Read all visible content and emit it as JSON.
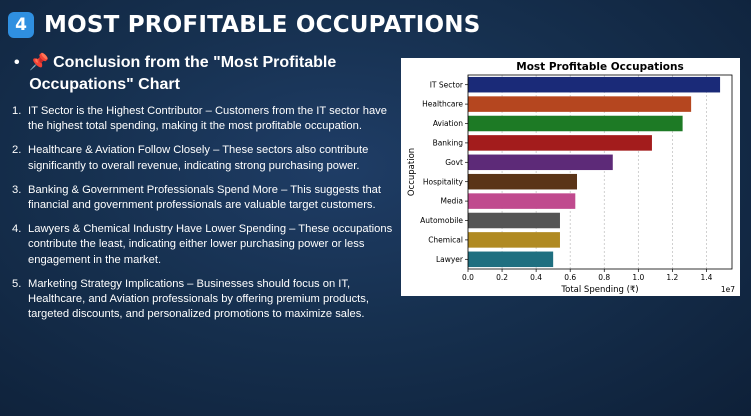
{
  "slide": {
    "badge": "4",
    "title": "MOST PROFITABLE OCCUPATIONS",
    "subheading_bullet": "•",
    "pin_icon": "📌",
    "subheading": "Conclusion from the \"Most Profitable Occupations\" Chart"
  },
  "points": [
    {
      "num": "1.",
      "text": "IT Sector is the Highest Contributor – Customers from the IT sector have the highest total spending, making it the most profitable occupation."
    },
    {
      "num": "2.",
      "text": "Healthcare & Aviation Follow Closely – These sectors also contribute significantly to overall revenue, indicating strong purchasing power."
    },
    {
      "num": "3.",
      "text": "Banking & Government Professionals Spend More – This suggests that financial and government professionals are valuable target customers."
    },
    {
      "num": "4.",
      "text": "Lawyers & Chemical Industry Have Lower Spending – These occupations contribute the least, indicating either lower purchasing power or less engagement in the market."
    },
    {
      "num": "5.",
      "text": "Marketing Strategy Implications – Businesses should focus on IT, Healthcare, and Aviation professionals by offering premium products, targeted discounts, and personalized promotions to maximize sales."
    }
  ],
  "chart_data": {
    "type": "bar",
    "orientation": "horizontal",
    "title": "Most Profitable Occupations",
    "xlabel": "Total Spending (₹)",
    "ylabel": "Occupation",
    "x_multiplier_label": "1e7",
    "xlim": [
      0,
      1.55
    ],
    "xticks": [
      "0.0",
      "0.2",
      "0.4",
      "0.6",
      "0.8",
      "1.0",
      "1.2",
      "1.4"
    ],
    "grid": "x dashed",
    "categories": [
      "IT Sector",
      "Healthcare",
      "Aviation",
      "Banking",
      "Govt",
      "Hospitality",
      "Media",
      "Automobile",
      "Chemical",
      "Lawyer"
    ],
    "values": [
      1.48,
      1.31,
      1.26,
      1.08,
      0.85,
      0.64,
      0.63,
      0.54,
      0.54,
      0.5
    ],
    "colors": [
      "#1a2a78",
      "#b5461f",
      "#1d7a25",
      "#a31c1c",
      "#5d2a78",
      "#5a3417",
      "#c04a8e",
      "#555555",
      "#b08a22",
      "#1f6f80"
    ]
  }
}
